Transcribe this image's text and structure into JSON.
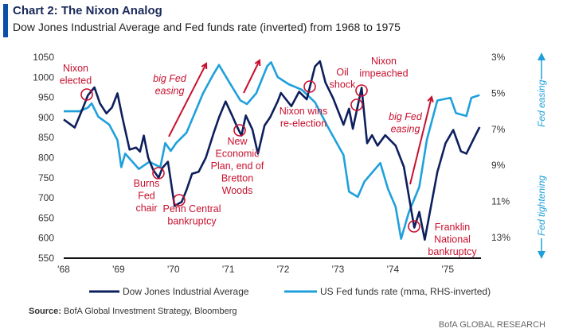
{
  "header": {
    "title": "Chart 2: The Nixon Analog",
    "subtitle": "Dow Jones Industrial Average and Fed funds rate (inverted) from 1968 to 1975"
  },
  "footer": {
    "source_label": "Source:",
    "source_text": " BofA Global Investment Strategy, Bloomberg",
    "brand": "BofA GLOBAL RESEARCH"
  },
  "colors": {
    "djia": "#0d1f5c",
    "fed": "#1fa0dc",
    "annotation": "#c8102e",
    "axis": "#111111"
  },
  "chart_data": {
    "type": "line",
    "title": "Chart 2: The Nixon Analog",
    "xlabel": "",
    "ylabel": "Dow Jones Industrial Average",
    "y2label": "US Fed funds rate (mma, RHS-inverted)",
    "xlim": [
      1968,
      1975.6
    ],
    "ylim": [
      550,
      1050
    ],
    "y2lim": [
      14,
      3
    ],
    "x_ticks": [
      1968,
      1969,
      1970,
      1971,
      1972,
      1973,
      1974,
      1975
    ],
    "x_tick_labels": [
      "'68",
      "'69",
      "'70",
      "'71",
      "'72",
      "'73",
      "'74",
      "'75"
    ],
    "y_ticks": [
      550,
      600,
      650,
      700,
      750,
      800,
      850,
      900,
      950,
      1000,
      1050
    ],
    "y_tick_labels": [
      "550",
      "600",
      "650",
      "700",
      "750",
      "800",
      "850",
      "900",
      "950",
      "1000",
      "1050"
    ],
    "y2_ticks": [
      3,
      5,
      7,
      9,
      11,
      13
    ],
    "y2_tick_labels": [
      "3%",
      "5%",
      "7%",
      "9%",
      "11%",
      "13%"
    ],
    "y2_axis_notes": [
      "Fed easing",
      "Fed tightening"
    ],
    "legend": {
      "placement": "bottom",
      "entries": [
        "Dow Jones Industrial Average",
        "US Fed funds rate (mma, RHS-inverted)"
      ]
    },
    "series": [
      {
        "name": "Dow Jones Industrial Average",
        "axis": "left",
        "points": [
          [
            1968.0,
            895
          ],
          [
            1968.2,
            875
          ],
          [
            1968.34,
            920
          ],
          [
            1968.44,
            955
          ],
          [
            1968.56,
            975
          ],
          [
            1968.66,
            935
          ],
          [
            1968.78,
            910
          ],
          [
            1968.88,
            925
          ],
          [
            1968.98,
            960
          ],
          [
            1969.07,
            900
          ],
          [
            1969.2,
            820
          ],
          [
            1969.32,
            825
          ],
          [
            1969.39,
            815
          ],
          [
            1969.46,
            855
          ],
          [
            1969.54,
            800
          ],
          [
            1969.63,
            770
          ],
          [
            1969.73,
            750
          ],
          [
            1969.8,
            775
          ],
          [
            1969.9,
            790
          ],
          [
            1970.02,
            680
          ],
          [
            1970.15,
            690
          ],
          [
            1970.24,
            720
          ],
          [
            1970.34,
            760
          ],
          [
            1970.46,
            765
          ],
          [
            1970.59,
            800
          ],
          [
            1970.73,
            860
          ],
          [
            1970.83,
            900
          ],
          [
            1970.95,
            940
          ],
          [
            1971.07,
            905
          ],
          [
            1971.15,
            880
          ],
          [
            1971.24,
            855
          ],
          [
            1971.32,
            905
          ],
          [
            1971.44,
            870
          ],
          [
            1971.54,
            810
          ],
          [
            1971.66,
            880
          ],
          [
            1971.76,
            900
          ],
          [
            1971.9,
            940
          ],
          [
            1971.96,
            961
          ],
          [
            1972.15,
            928
          ],
          [
            1972.29,
            964
          ],
          [
            1972.43,
            945
          ],
          [
            1972.58,
            1027
          ],
          [
            1972.67,
            1040
          ],
          [
            1972.77,
            987
          ],
          [
            1972.91,
            948
          ],
          [
            1973.1,
            882
          ],
          [
            1973.2,
            922
          ],
          [
            1973.27,
            872
          ],
          [
            1973.43,
            974
          ],
          [
            1973.53,
            836
          ],
          [
            1973.62,
            856
          ],
          [
            1973.72,
            830
          ],
          [
            1973.86,
            856
          ],
          [
            1974.05,
            830
          ],
          [
            1974.2,
            777
          ],
          [
            1974.34,
            665
          ],
          [
            1974.39,
            626
          ],
          [
            1974.48,
            665
          ],
          [
            1974.58,
            596
          ],
          [
            1974.72,
            698
          ],
          [
            1974.81,
            764
          ],
          [
            1974.96,
            836
          ],
          [
            1975.1,
            869
          ],
          [
            1975.24,
            816
          ],
          [
            1975.34,
            810
          ],
          [
            1975.48,
            849
          ],
          [
            1975.58,
            876
          ]
        ]
      },
      {
        "name": "US Fed funds rate (mma, RHS-inverted)",
        "axis": "right",
        "points": [
          [
            1968.0,
            6.0
          ],
          [
            1968.29,
            6.0
          ],
          [
            1968.44,
            5.8
          ],
          [
            1968.51,
            5.56
          ],
          [
            1968.63,
            6.3
          ],
          [
            1968.83,
            6.74
          ],
          [
            1968.98,
            7.6
          ],
          [
            1969.05,
            9.1
          ],
          [
            1969.12,
            8.35
          ],
          [
            1969.37,
            9.2
          ],
          [
            1969.56,
            8.8
          ],
          [
            1969.76,
            9.1
          ],
          [
            1969.85,
            7.76
          ],
          [
            1969.95,
            8.2
          ],
          [
            1970.05,
            7.76
          ],
          [
            1970.24,
            7.18
          ],
          [
            1970.54,
            5.0
          ],
          [
            1970.73,
            3.94
          ],
          [
            1970.83,
            3.43
          ],
          [
            1971.02,
            4.4
          ],
          [
            1971.22,
            5.4
          ],
          [
            1971.34,
            5.6
          ],
          [
            1971.51,
            5.0
          ],
          [
            1971.71,
            3.5
          ],
          [
            1971.78,
            3.28
          ],
          [
            1971.9,
            4.1
          ],
          [
            1972.1,
            4.5
          ],
          [
            1972.34,
            4.8
          ],
          [
            1972.58,
            5.5
          ],
          [
            1972.81,
            6.84
          ],
          [
            1973.1,
            8.43
          ],
          [
            1973.2,
            10.46
          ],
          [
            1973.36,
            10.75
          ],
          [
            1973.48,
            9.9
          ],
          [
            1973.77,
            8.87
          ],
          [
            1973.91,
            10.3
          ],
          [
            1974.05,
            11.3
          ],
          [
            1974.15,
            13.07
          ],
          [
            1974.29,
            11.6
          ],
          [
            1974.48,
            10.2
          ],
          [
            1974.62,
            7.57
          ],
          [
            1974.81,
            5.4
          ],
          [
            1975.05,
            5.25
          ],
          [
            1975.15,
            6.1
          ],
          [
            1975.34,
            6.26
          ],
          [
            1975.43,
            5.25
          ],
          [
            1975.58,
            5.1
          ]
        ]
      }
    ],
    "annotations": [
      {
        "lines": [
          "Nixon",
          "elected"
        ]
      },
      {
        "lines": [
          "big Fed",
          "easing"
        ]
      },
      {
        "lines": [
          "Burns",
          "Fed",
          "chair"
        ]
      },
      {
        "lines": [
          "Penn Central",
          "bankruptcy"
        ]
      },
      {
        "lines": [
          "New",
          "Economic",
          "Plan, end of",
          "Bretton",
          "Woods"
        ]
      },
      {
        "lines": [
          "Nixon wins",
          "re-election"
        ]
      },
      {
        "lines": [
          "Oil",
          "shock"
        ]
      },
      {
        "lines": [
          "Nixon",
          "impeached"
        ]
      },
      {
        "lines": [
          "big Fed",
          "easing"
        ]
      },
      {
        "lines": [
          "Franklin",
          "National",
          "bankruptcy"
        ]
      }
    ]
  }
}
